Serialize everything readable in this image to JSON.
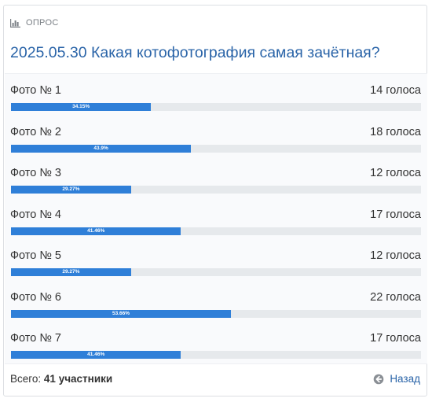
{
  "poll": {
    "type_label": "ОПРОС",
    "title": "2025.05.30 Какая котофотография самая зачётная?",
    "options": [
      {
        "label": "Фото № 1",
        "votes": "14 голоса",
        "percent_text": "34.15%",
        "percent": 34.15
      },
      {
        "label": "Фото № 2",
        "votes": "18 голоса",
        "percent_text": "43.9%",
        "percent": 43.9
      },
      {
        "label": "Фото № 3",
        "votes": "12 голоса",
        "percent_text": "29.27%",
        "percent": 29.27
      },
      {
        "label": "Фото № 4",
        "votes": "17 голоса",
        "percent_text": "41.46%",
        "percent": 41.46
      },
      {
        "label": "Фото № 5",
        "votes": "12 голоса",
        "percent_text": "29.27%",
        "percent": 29.27
      },
      {
        "label": "Фото № 6",
        "votes": "22 голоса",
        "percent_text": "53.66%",
        "percent": 53.66
      },
      {
        "label": "Фото № 7",
        "votes": "17 голоса",
        "percent_text": "41.46%",
        "percent": 41.46
      }
    ],
    "footer": {
      "total_label": "Всего:",
      "total_value": "41 участники",
      "back_label": "Назад"
    }
  },
  "icons": {
    "poll": "bar-chart-icon",
    "back": "arrow-left-circle-icon"
  },
  "colors": {
    "title": "#2a64a8",
    "bar_fill": "#2f7fd8",
    "bar_track": "#e6e9ec",
    "link": "#2a64a8"
  }
}
